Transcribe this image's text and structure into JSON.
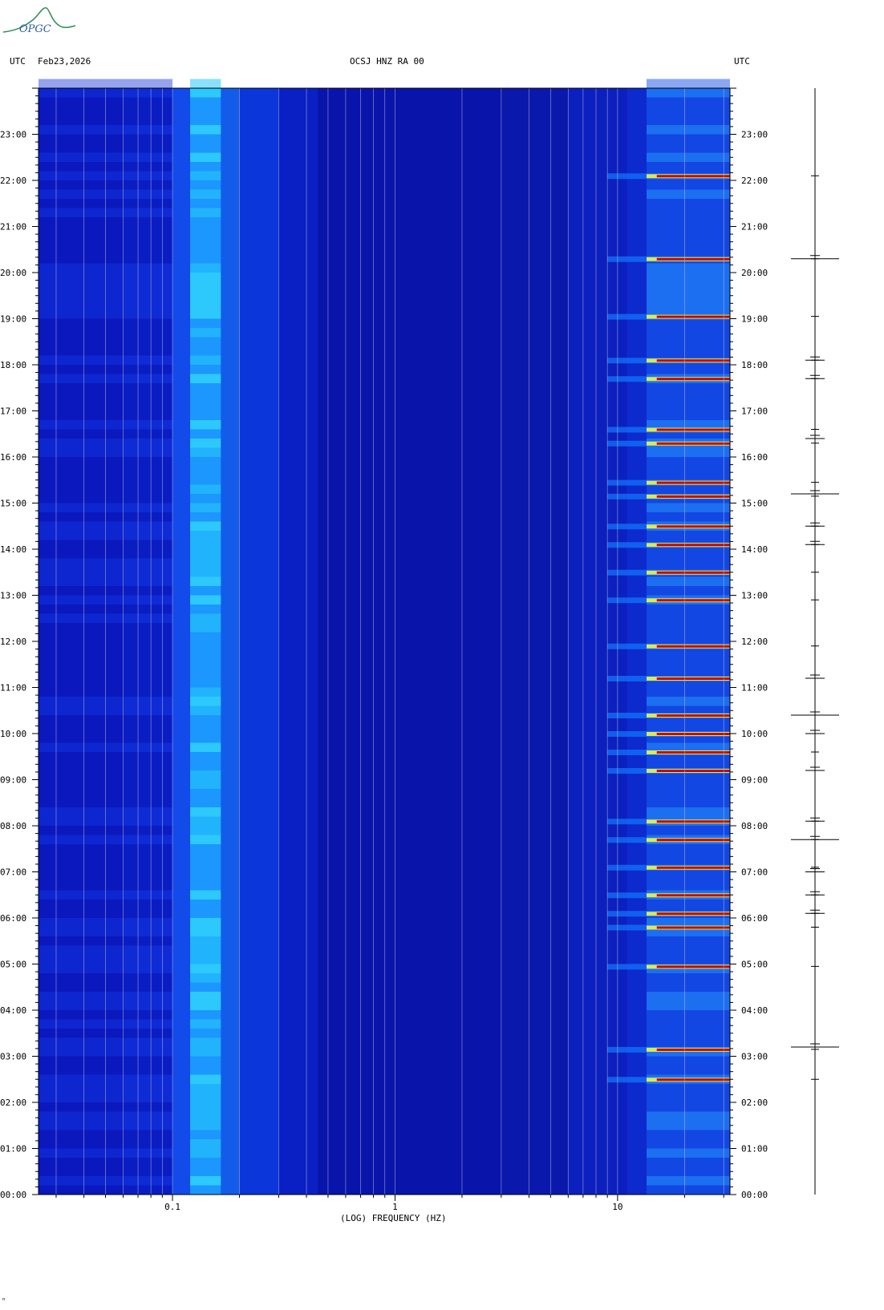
{
  "header": {
    "left_tz": "UTC",
    "date": "Feb23,2026",
    "station": "OCSJ HNZ RA 00",
    "right_tz": "UTC"
  },
  "logo": {
    "text": "OPGC"
  },
  "footer": {
    "mark": "ⁿ"
  },
  "chart_data": {
    "type": "heatmap",
    "title": "OCSJ HNZ RA 00",
    "xlabel": "(LOG) FREQUENCY (HZ)",
    "ylabel": "UTC",
    "x_scale": "log",
    "xlim": [
      0.025,
      32
    ],
    "x_ticks": [
      0.1,
      1,
      10
    ],
    "x_tick_labels": [
      "0.1",
      "1",
      "10"
    ],
    "ylim_hours": [
      0,
      24
    ],
    "y_tick_labels": [
      "00:00",
      "01:00",
      "02:00",
      "03:00",
      "04:00",
      "05:00",
      "06:00",
      "07:00",
      "08:00",
      "09:00",
      "10:00",
      "11:00",
      "12:00",
      "13:00",
      "14:00",
      "15:00",
      "16:00",
      "17:00",
      "18:00",
      "19:00",
      "20:00",
      "21:00",
      "22:00",
      "23:00"
    ],
    "colormap": [
      "#0000b4",
      "#0a28e6",
      "#1478ff",
      "#28dcff",
      "#ffff3c",
      "#c80000"
    ],
    "background_color": "#0a14b4",
    "event_hours": [
      22.1,
      20.3,
      19.05,
      18.1,
      17.7,
      16.6,
      16.3,
      15.45,
      15.15,
      14.5,
      14.1,
      13.5,
      12.9,
      11.9,
      11.2,
      10.4,
      10.0,
      9.6,
      9.2,
      8.1,
      7.7,
      7.1,
      6.5,
      6.1,
      5.8,
      4.95,
      3.15,
      2.5
    ],
    "waveform_burst_hours": [
      20.3,
      18.1,
      17.7,
      16.4,
      15.2,
      14.5,
      14.1,
      11.2,
      10.4,
      10.0,
      9.2,
      8.1,
      7.7,
      7.0,
      6.5,
      6.1,
      3.2
    ]
  }
}
